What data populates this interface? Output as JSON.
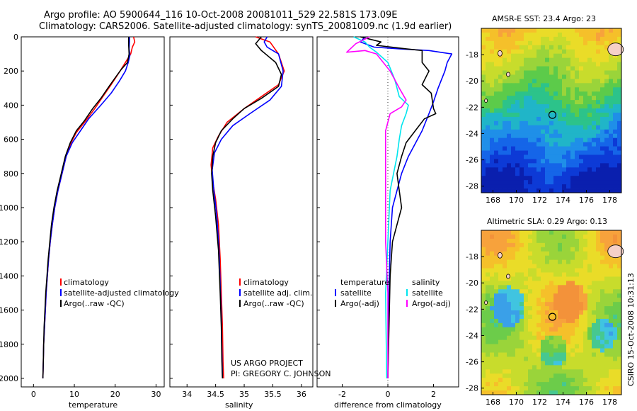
{
  "header": {
    "title_line1": "Argo profile: AO 5900644_116 10-Oct-2008 20081011_529 22.581S 173.09E",
    "title_line2": "Climatology: CARS2006. Satellite-adjusted climatology: synTS_20081009.nc (1.9d earlier)"
  },
  "side_text": "CSIRO 15-Oct-2008 10:31:13",
  "project": {
    "line1": "US ARGO PROJECT",
    "line2": "PI: GREGORY C. JOHNSON"
  },
  "colors": {
    "climatology": "#ff0000",
    "satellite": "#0000ff",
    "argo": "#000000",
    "cyan": "#00e5ee",
    "magenta": "#ff00ff"
  },
  "chart_data": [
    {
      "type": "line",
      "title": "",
      "xlabel": "temperature",
      "ylabel": "",
      "xlim": [
        -3,
        32
      ],
      "ylim": [
        2050,
        0
      ],
      "xticks": [
        "0",
        "10",
        "20",
        "30"
      ],
      "yticks": [
        "0",
        "200",
        "400",
        "600",
        "800",
        "1000",
        "1200",
        "1400",
        "1600",
        "1800",
        "2000"
      ],
      "legend": [
        "climatology",
        "satellite-adjusted climatology",
        "Argo(..raw -QC)"
      ],
      "series": [
        {
          "name": "climatology",
          "color": "#ff0000",
          "points": [
            [
              24.5,
              0
            ],
            [
              24.8,
              30
            ],
            [
              24.2,
              60
            ],
            [
              23.8,
              100
            ],
            [
              22.5,
              150
            ],
            [
              21.2,
              200
            ],
            [
              19.0,
              280
            ],
            [
              17.0,
              350
            ],
            [
              15.0,
              420
            ],
            [
              12.5,
              500
            ],
            [
              10.5,
              560
            ],
            [
              9.2,
              620
            ],
            [
              8.0,
              700
            ],
            [
              7.0,
              800
            ],
            [
              6.0,
              900
            ],
            [
              5.2,
              1000
            ],
            [
              4.6,
              1100
            ],
            [
              4.1,
              1200
            ],
            [
              3.7,
              1300
            ],
            [
              3.4,
              1400
            ],
            [
              3.1,
              1500
            ],
            [
              2.9,
              1600
            ],
            [
              2.7,
              1700
            ],
            [
              2.5,
              1800
            ],
            [
              2.4,
              1900
            ],
            [
              2.3,
              2000
            ]
          ]
        },
        {
          "name": "satellite",
          "color": "#0000ff",
          "points": [
            [
              23.5,
              0
            ],
            [
              23.5,
              30
            ],
            [
              23.4,
              70
            ],
            [
              23.6,
              110
            ],
            [
              23.2,
              150
            ],
            [
              22.5,
              200
            ],
            [
              21.0,
              260
            ],
            [
              19.0,
              330
            ],
            [
              16.5,
              400
            ],
            [
              13.5,
              480
            ],
            [
              11.5,
              550
            ],
            [
              9.5,
              620
            ],
            [
              8.0,
              700
            ],
            [
              7.0,
              800
            ],
            [
              6.0,
              900
            ],
            [
              5.2,
              1000
            ],
            [
              4.6,
              1100
            ],
            [
              4.1,
              1200
            ],
            [
              3.7,
              1300
            ],
            [
              3.4,
              1400
            ],
            [
              3.1,
              1500
            ],
            [
              2.9,
              1600
            ],
            [
              2.7,
              1700
            ],
            [
              2.5,
              1800
            ],
            [
              2.4,
              1900
            ],
            [
              2.3,
              2000
            ]
          ]
        },
        {
          "name": "argo",
          "color": "#000000",
          "points": [
            [
              23.3,
              0
            ],
            [
              23.3,
              50
            ],
            [
              23.4,
              100
            ],
            [
              23.0,
              150
            ],
            [
              21.5,
              190
            ],
            [
              20.0,
              240
            ],
            [
              18.5,
              290
            ],
            [
              16.5,
              360
            ],
            [
              14.5,
              420
            ],
            [
              12.5,
              490
            ],
            [
              10.5,
              550
            ],
            [
              9.0,
              620
            ],
            [
              7.8,
              700
            ],
            [
              6.8,
              800
            ],
            [
              5.8,
              900
            ],
            [
              5.0,
              1000
            ],
            [
              4.4,
              1100
            ],
            [
              4.0,
              1200
            ],
            [
              3.6,
              1300
            ],
            [
              3.3,
              1400
            ],
            [
              3.0,
              1500
            ],
            [
              2.8,
              1600
            ],
            [
              2.6,
              1700
            ],
            [
              2.5,
              1800
            ],
            [
              2.4,
              1900
            ],
            [
              2.3,
              2000
            ]
          ]
        }
      ]
    },
    {
      "type": "line",
      "title": "",
      "xlabel": "salinity",
      "ylabel": "",
      "xlim": [
        33.7,
        36.2
      ],
      "ylim": [
        2050,
        0
      ],
      "xticks": [
        "34",
        "34.5",
        "35",
        "35.5",
        "36"
      ],
      "yticks": [],
      "legend": [
        "climatology",
        "satellite adj. clim.",
        "Argo(..raw -QC)"
      ],
      "series": [
        {
          "name": "climatology",
          "color": "#ff0000",
          "points": [
            [
              35.2,
              0
            ],
            [
              35.45,
              30
            ],
            [
              35.6,
              100
            ],
            [
              35.7,
              200
            ],
            [
              35.6,
              280
            ],
            [
              35.3,
              350
            ],
            [
              35.0,
              420
            ],
            [
              34.7,
              500
            ],
            [
              34.55,
              580
            ],
            [
              34.45,
              650
            ],
            [
              34.42,
              750
            ],
            [
              34.45,
              850
            ],
            [
              34.5,
              950
            ],
            [
              34.55,
              1100
            ],
            [
              34.58,
              1300
            ],
            [
              34.6,
              1500
            ],
            [
              34.62,
              1700
            ],
            [
              34.63,
              1900
            ],
            [
              34.64,
              2000
            ]
          ]
        },
        {
          "name": "satellite",
          "color": "#0000ff",
          "points": [
            [
              35.4,
              0
            ],
            [
              35.35,
              30
            ],
            [
              35.4,
              60
            ],
            [
              35.6,
              100
            ],
            [
              35.68,
              200
            ],
            [
              35.65,
              290
            ],
            [
              35.45,
              370
            ],
            [
              35.1,
              450
            ],
            [
              34.8,
              520
            ],
            [
              34.6,
              600
            ],
            [
              34.48,
              680
            ],
            [
              34.44,
              780
            ],
            [
              34.47,
              900
            ],
            [
              34.52,
              1050
            ],
            [
              34.56,
              1250
            ],
            [
              34.58,
              1450
            ],
            [
              34.6,
              1650
            ],
            [
              34.61,
              1850
            ],
            [
              34.62,
              2000
            ]
          ]
        },
        {
          "name": "argo",
          "color": "#000000",
          "points": [
            [
              35.3,
              0
            ],
            [
              35.2,
              40
            ],
            [
              35.3,
              80
            ],
            [
              35.55,
              150
            ],
            [
              35.65,
              220
            ],
            [
              35.6,
              290
            ],
            [
              35.3,
              360
            ],
            [
              35.0,
              420
            ],
            [
              34.8,
              480
            ],
            [
              34.6,
              550
            ],
            [
              34.5,
              620
            ],
            [
              34.45,
              700
            ],
            [
              34.43,
              800
            ],
            [
              34.45,
              900
            ],
            [
              34.5,
              1050
            ],
            [
              34.55,
              1250
            ],
            [
              34.58,
              1500
            ],
            [
              34.6,
              1700
            ],
            [
              34.61,
              1900
            ],
            [
              34.62,
              2000
            ]
          ]
        }
      ]
    },
    {
      "type": "line",
      "title": "",
      "xlabel": "difference from climatology",
      "ylabel": "",
      "xlim": [
        -3.1,
        3.1
      ],
      "ylim": [
        2050,
        0
      ],
      "xticks": [
        "-2",
        "0",
        "2"
      ],
      "yticks": [],
      "legend": [
        "temperature",
        "satellite",
        "Argo(-adj)",
        "salinity",
        "satellite",
        "Argo(-adj)"
      ],
      "series": [
        {
          "name": "temperature satellite",
          "color": "#0000ff",
          "points": [
            [
              -1.0,
              0
            ],
            [
              -1.2,
              30
            ],
            [
              -0.6,
              60
            ],
            [
              0.5,
              70
            ],
            [
              1.8,
              80
            ],
            [
              2.8,
              100
            ],
            [
              2.6,
              150
            ],
            [
              2.5,
              200
            ],
            [
              2.2,
              300
            ],
            [
              2.0,
              380
            ],
            [
              1.8,
              450
            ],
            [
              1.5,
              550
            ],
            [
              1.3,
              600
            ],
            [
              1.1,
              650
            ],
            [
              0.9,
              700
            ],
            [
              0.6,
              800
            ],
            [
              0.4,
              900
            ],
            [
              0.2,
              1000
            ],
            [
              0.1,
              1200
            ],
            [
              0.05,
              1500
            ],
            [
              0.0,
              2000
            ]
          ]
        },
        {
          "name": "temperature argo",
          "color": "#000000",
          "points": [
            [
              -1.2,
              0
            ],
            [
              -0.3,
              30
            ],
            [
              -0.5,
              50
            ],
            [
              0.8,
              70
            ],
            [
              1.5,
              80
            ],
            [
              1.5,
              150
            ],
            [
              1.8,
              200
            ],
            [
              1.5,
              280
            ],
            [
              1.9,
              330
            ],
            [
              2.0,
              420
            ],
            [
              2.1,
              450
            ],
            [
              1.6,
              480
            ],
            [
              1.2,
              550
            ],
            [
              0.8,
              620
            ],
            [
              0.6,
              700
            ],
            [
              0.4,
              800
            ],
            [
              0.5,
              900
            ],
            [
              0.6,
              1000
            ],
            [
              0.4,
              1100
            ],
            [
              0.2,
              1200
            ],
            [
              0.1,
              1400
            ],
            [
              0.0,
              2000
            ]
          ]
        },
        {
          "name": "salinity satellite",
          "color": "#00e5ee",
          "points": [
            [
              -1.5,
              0
            ],
            [
              -1.0,
              30
            ],
            [
              -0.8,
              60
            ],
            [
              -0.5,
              90
            ],
            [
              0.0,
              150
            ],
            [
              0.3,
              250
            ],
            [
              0.5,
              350
            ],
            [
              0.9,
              400
            ],
            [
              0.8,
              450
            ],
            [
              0.6,
              520
            ],
            [
              0.5,
              600
            ],
            [
              0.4,
              700
            ],
            [
              0.1,
              900
            ],
            [
              0.0,
              1200
            ],
            [
              -0.1,
              1500
            ],
            [
              -0.05,
              2000
            ]
          ]
        },
        {
          "name": "salinity argo",
          "color": "#ff00ff",
          "points": [
            [
              -0.8,
              0
            ],
            [
              -1.4,
              40
            ],
            [
              -1.8,
              90
            ],
            [
              -1.0,
              80
            ],
            [
              -0.5,
              100
            ],
            [
              0.1,
              200
            ],
            [
              0.5,
              300
            ],
            [
              0.8,
              370
            ],
            [
              0.6,
              410
            ],
            [
              0.1,
              450
            ],
            [
              -0.1,
              550
            ],
            [
              -0.1,
              650
            ],
            [
              -0.1,
              800
            ],
            [
              -0.1,
              1000
            ],
            [
              -0.1,
              1200
            ],
            [
              0.0,
              1500
            ],
            [
              0.0,
              2000
            ]
          ]
        }
      ]
    },
    {
      "type": "heatmap",
      "title": "AMSR-E SST: 23.4 Argo: 23",
      "xlim": [
        167,
        179
      ],
      "ylim": [
        -28.5,
        -16
      ],
      "xticks": [
        "168",
        "170",
        "172",
        "174",
        "176",
        "178"
      ],
      "yticks": [
        "-18",
        "-20",
        "-22",
        "-24",
        "-26",
        "-28"
      ],
      "marker": {
        "lon": 173.09,
        "lat": -22.58
      }
    },
    {
      "type": "heatmap",
      "title": "Altimetric SLA: 0.29 Argo: 0.13",
      "xlim": [
        167,
        179
      ],
      "ylim": [
        -28.5,
        -16
      ],
      "xticks": [
        "168",
        "170",
        "172",
        "174",
        "176",
        "178"
      ],
      "yticks": [
        "-18",
        "-20",
        "-22",
        "-24",
        "-26",
        "-28"
      ],
      "marker": {
        "lon": 173.09,
        "lat": -22.58
      }
    }
  ]
}
